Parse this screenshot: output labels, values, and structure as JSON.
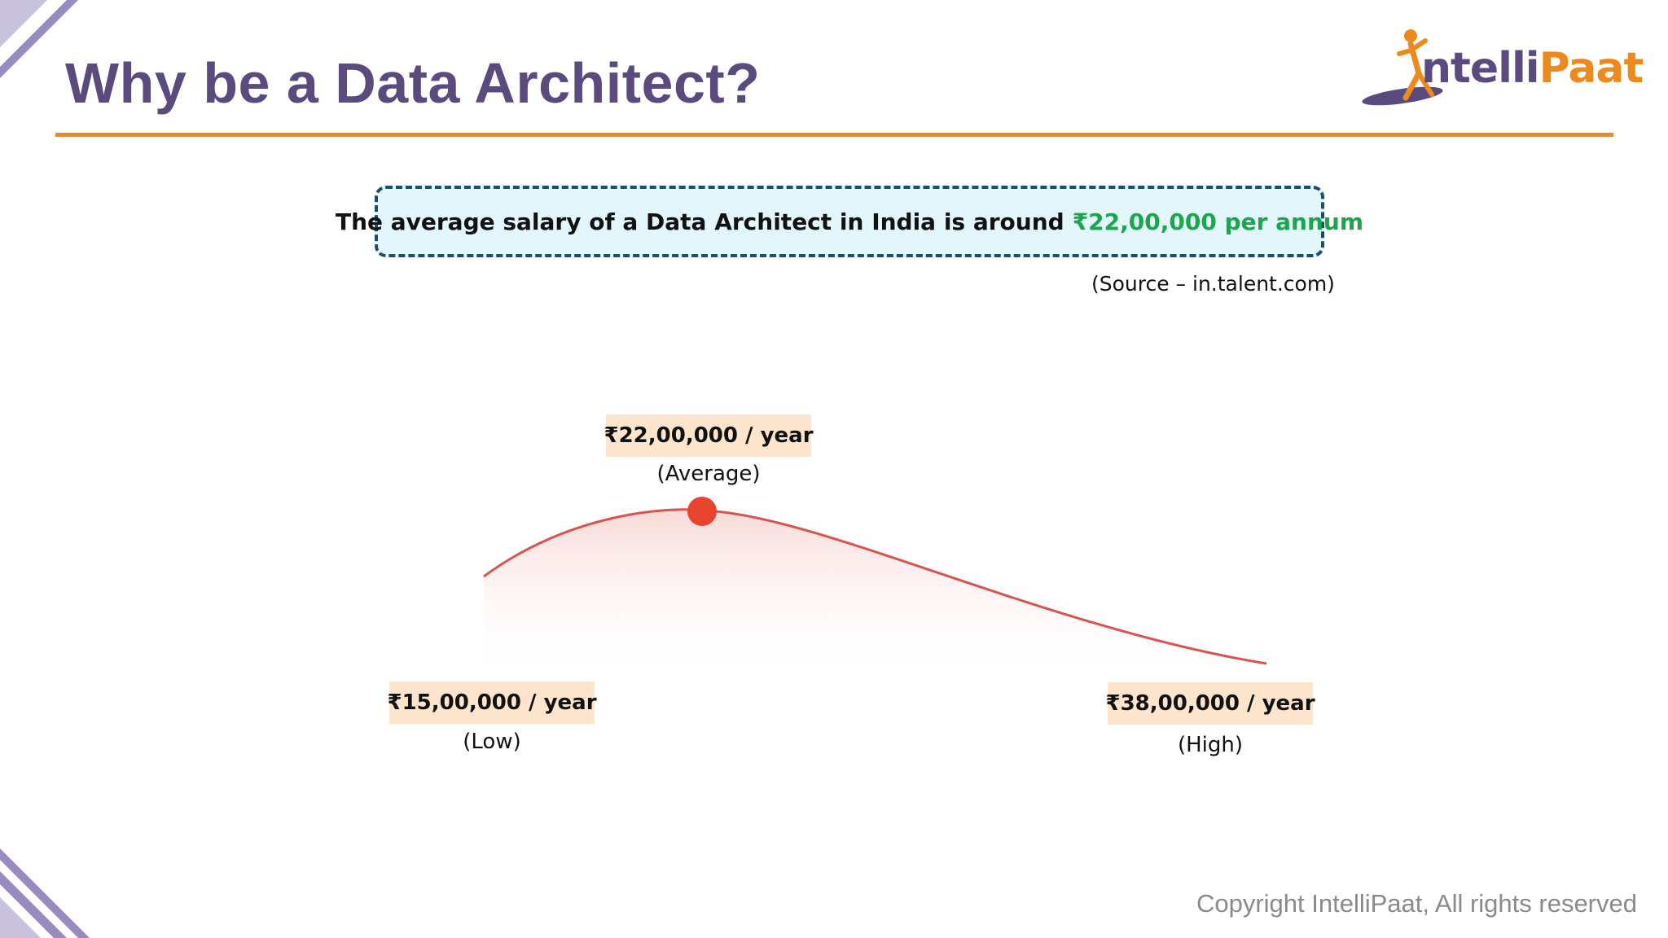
{
  "slide": {
    "title": "Why be a Data Architect?",
    "copyright": "Copyright IntelliPaat, All rights reserved"
  },
  "logo": {
    "text_a": "ntelli",
    "text_b": "Paat"
  },
  "callout": {
    "text": "The average salary of a Data Architect in India is around",
    "highlight": "₹22,00,000 per annum",
    "source": "(Source – in.talent.com)"
  },
  "salary": {
    "low": {
      "value": "₹15,00,000 / year",
      "caption": "(Low)"
    },
    "average": {
      "value": "₹22,00,000 / year",
      "caption": "(Average)"
    },
    "high": {
      "value": "₹38,00,000 / year",
      "caption": "(High)"
    }
  },
  "colors": {
    "title": "#5b4a7e",
    "accent_orange": "#ee8a1d",
    "highlight_green": "#1aa64a",
    "curve_red": "#d9534f",
    "marker_red": "#e8432e",
    "label_bg": "#fde4cc",
    "callout_bg": "#e2f6fb",
    "callout_border": "#1f4e6b"
  }
}
